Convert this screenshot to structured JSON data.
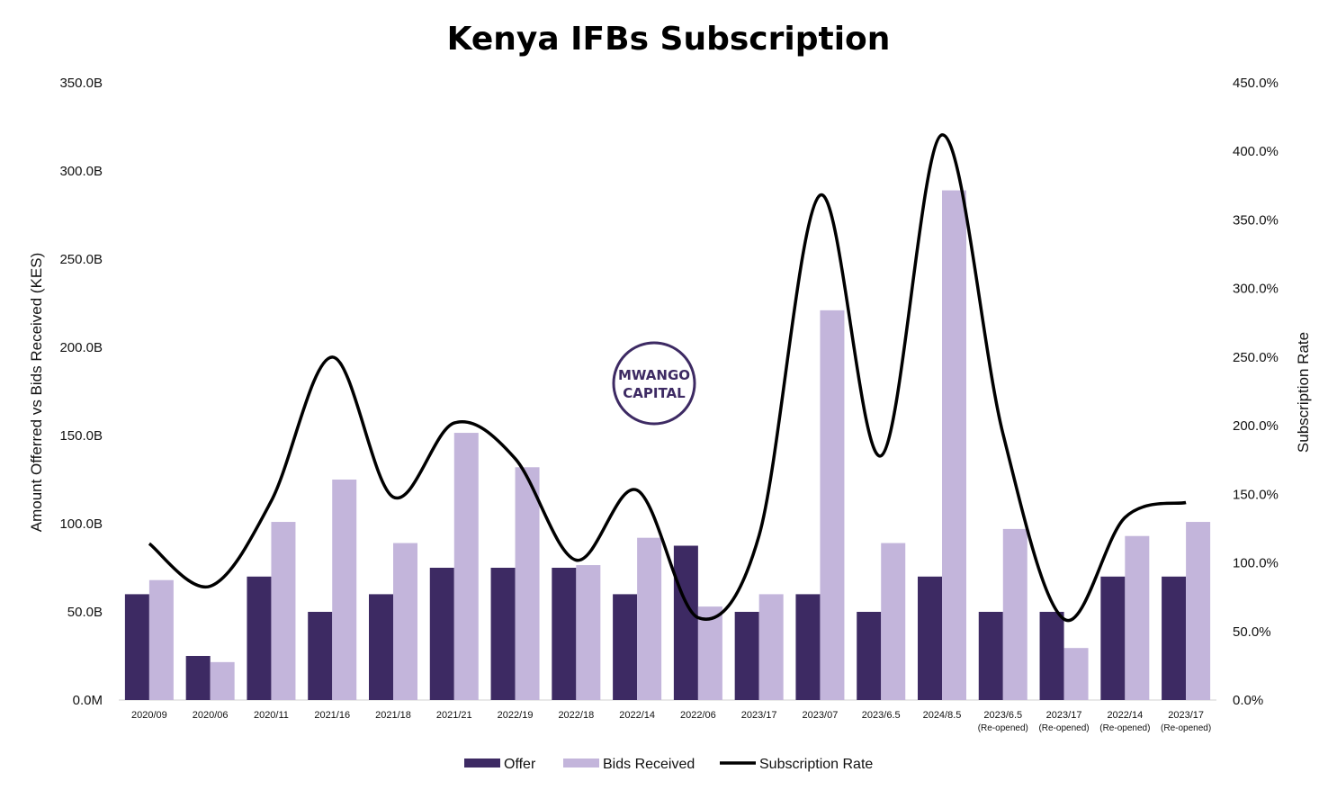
{
  "chart_data": {
    "type": "bar",
    "title": "Kenya IFBs Subscription",
    "ylabel": "Amount Offerred vs Bids Received (KES)",
    "y2label": "Subscription Rate",
    "ylim": [
      0,
      350
    ],
    "y2lim": [
      0,
      450
    ],
    "yticks": [
      "0.0M",
      "50.0B",
      "100.0B",
      "150.0B",
      "200.0B",
      "250.0B",
      "300.0B",
      "350.0B"
    ],
    "y2ticks": [
      "0.0%",
      "50.0%",
      "100.0%",
      "150.0%",
      "200.0%",
      "250.0%",
      "300.0%",
      "350.0%",
      "400.0%",
      "450.0%"
    ],
    "categories": [
      [
        "2020/09"
      ],
      [
        "2020/06"
      ],
      [
        "2020/11"
      ],
      [
        "2021/16"
      ],
      [
        "2021/18"
      ],
      [
        "2021/21"
      ],
      [
        "2022/19"
      ],
      [
        "2022/18"
      ],
      [
        "2022/14"
      ],
      [
        "2022/06"
      ],
      [
        "2023/17"
      ],
      [
        "2023/07"
      ],
      [
        "2023/6.5"
      ],
      [
        "2024/8.5"
      ],
      [
        "2023/6.5",
        "(Re-opened)"
      ],
      [
        "2023/17",
        "(Re-opened)"
      ],
      [
        "2022/14",
        "(Re-opened)"
      ],
      [
        "2023/17",
        "(Re-opened)"
      ]
    ],
    "series": [
      {
        "name": "Offer",
        "kind": "bar",
        "color": "#3d2a63",
        "values": [
          60,
          25,
          70,
          50,
          60,
          75,
          75,
          75,
          60,
          87.5,
          50,
          60,
          50,
          70,
          50,
          50,
          70,
          70
        ]
      },
      {
        "name": "Bids Received",
        "kind": "bar",
        "color": "#c3b5db",
        "values": [
          68,
          21.5,
          101,
          125,
          89,
          151.5,
          132,
          76.5,
          92,
          53,
          60,
          221,
          89,
          289,
          97,
          29.5,
          93,
          101
        ]
      },
      {
        "name": "Subscription Rate",
        "kind": "line",
        "axis": "right",
        "color": "#000000",
        "values": [
          114,
          83,
          145,
          250,
          148,
          202,
          176,
          102,
          153,
          60,
          120,
          368,
          178,
          412,
          194,
          59,
          133,
          144
        ]
      }
    ],
    "legend": "bottom",
    "grid": false
  },
  "logo": {
    "line1": "MWANGO",
    "line2": "CAPITAL",
    "color": "#3d2a63"
  }
}
